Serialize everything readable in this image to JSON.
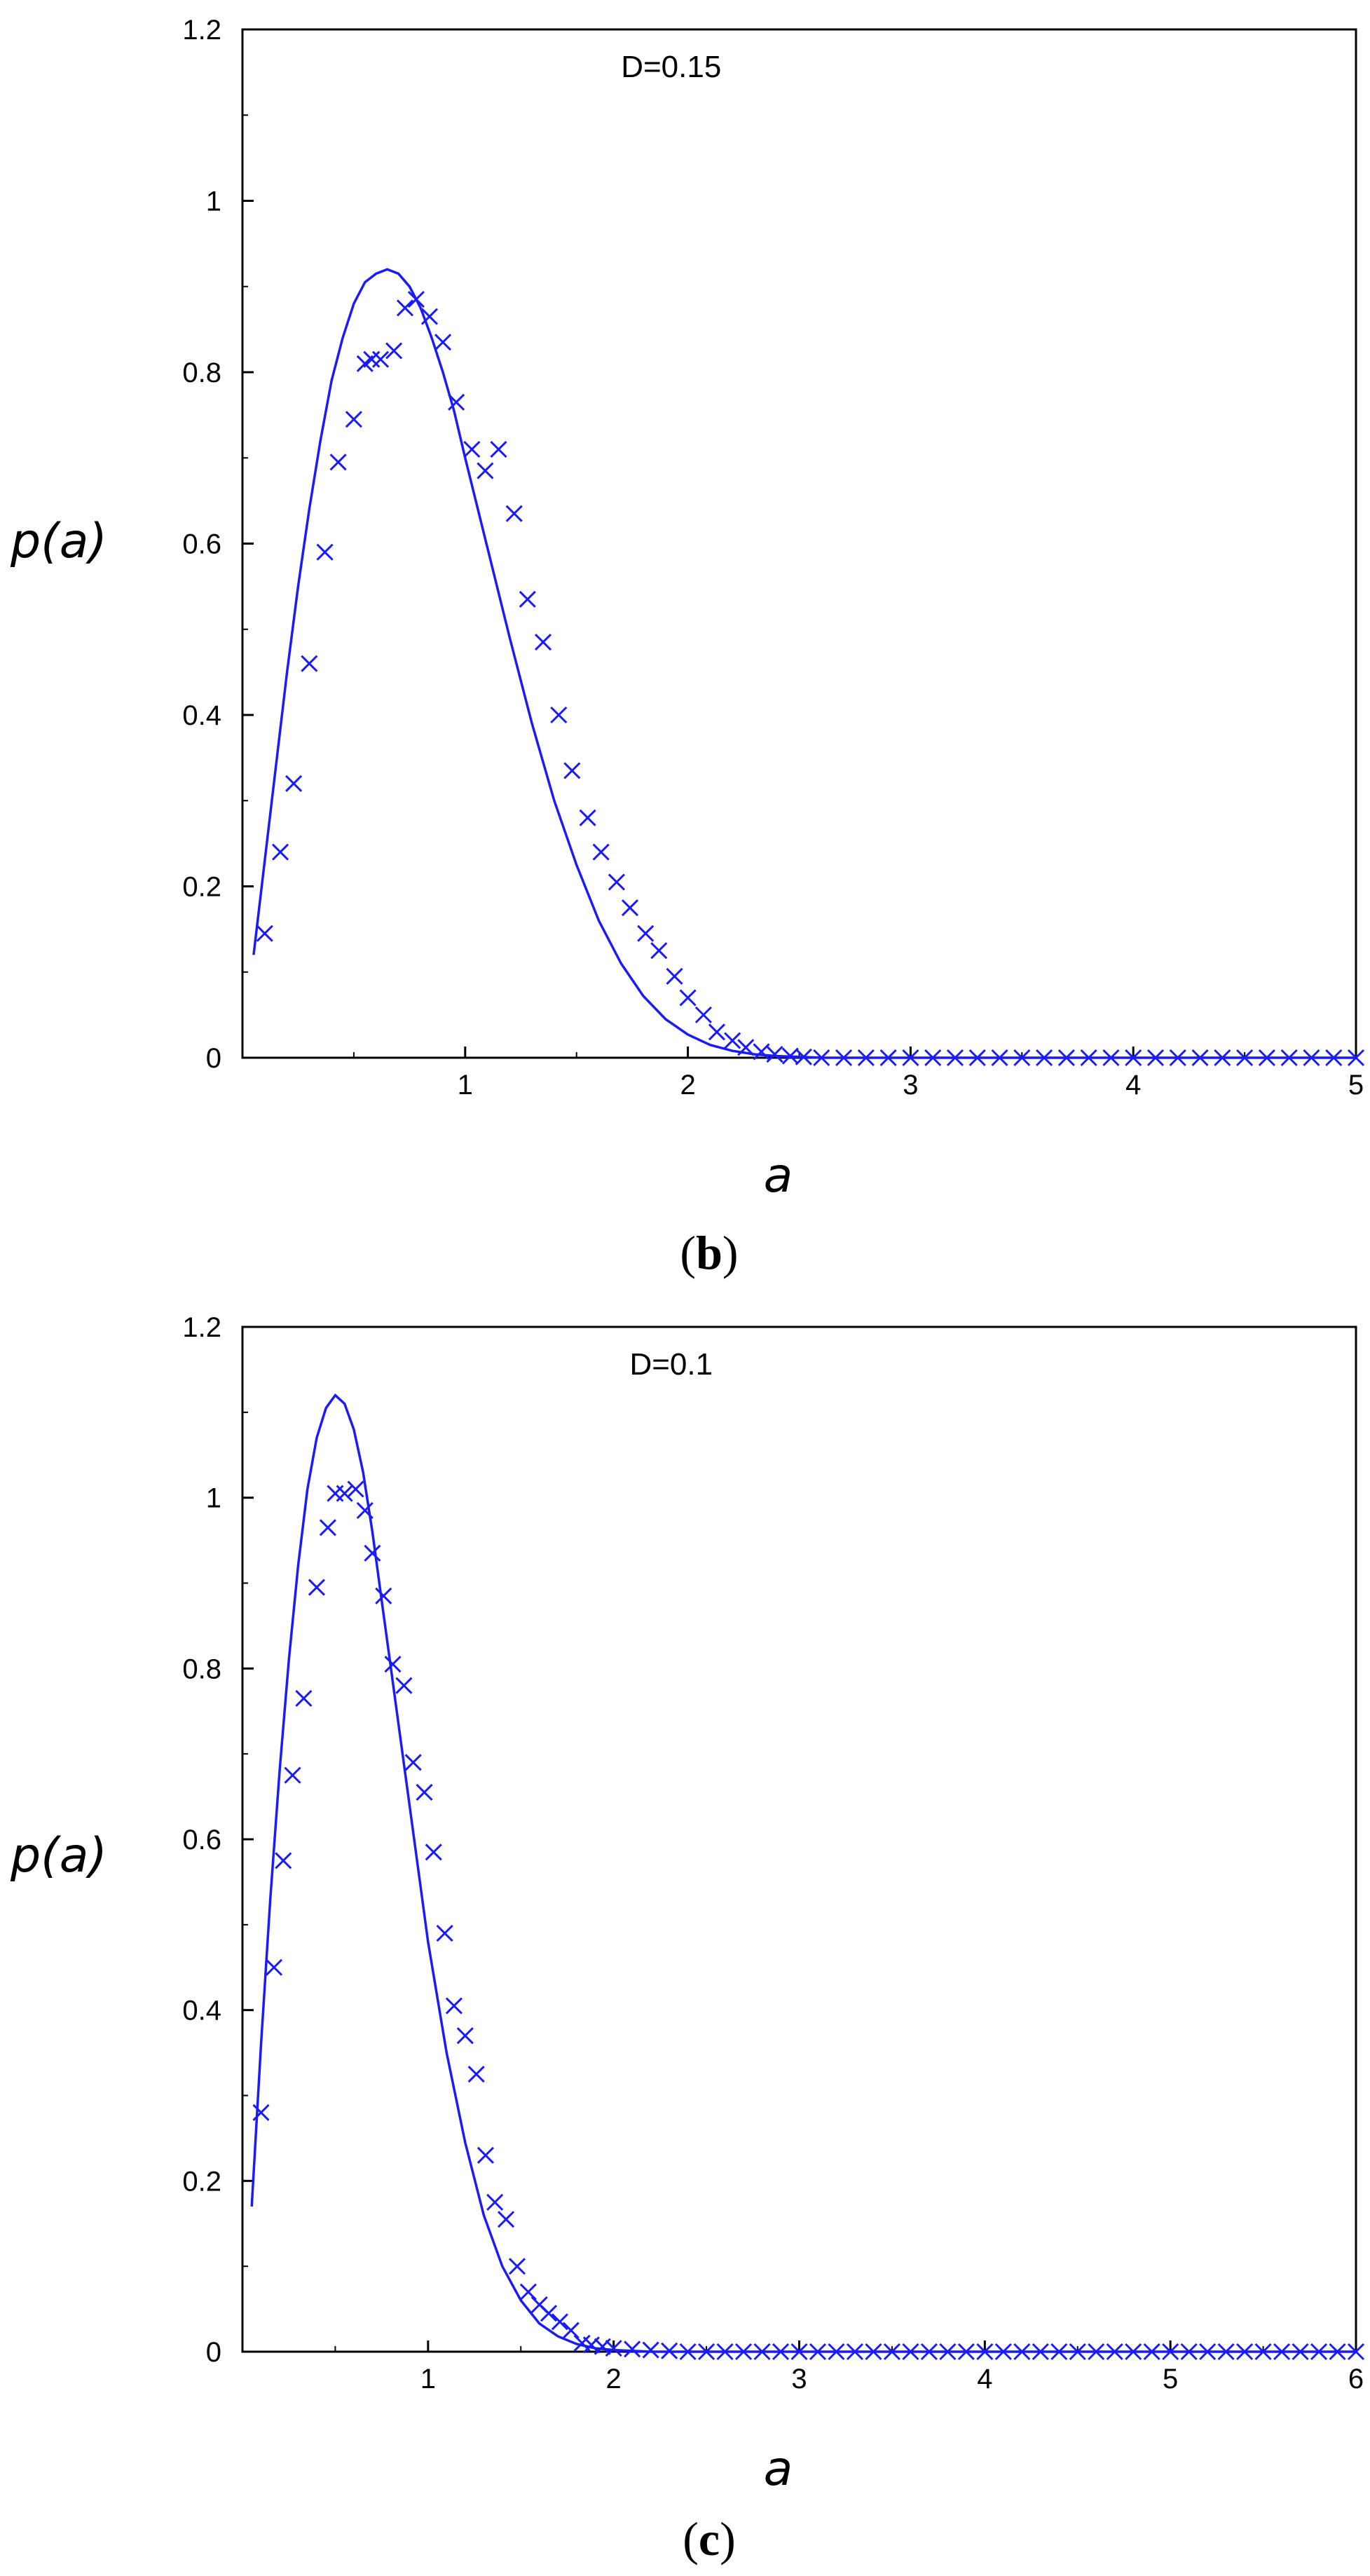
{
  "chart_data": [
    {
      "type": "scatter",
      "panel_label": "b",
      "annotation": "D=0.15",
      "xlabel": "a",
      "ylabel": "p(a)",
      "xlim": [
        0,
        5
      ],
      "ylim": [
        0,
        1.2
      ],
      "xticks": [
        1,
        2,
        3,
        4,
        5
      ],
      "yticks": [
        0,
        0.2,
        0.4,
        0.6,
        0.8,
        1,
        1.2
      ],
      "grid": false,
      "series": [
        {
          "kind": "line",
          "color": "#1a1aff",
          "x": [
            0.05,
            0.1,
            0.15,
            0.2,
            0.25,
            0.3,
            0.35,
            0.4,
            0.45,
            0.5,
            0.55,
            0.6,
            0.65,
            0.7,
            0.75,
            0.8,
            0.85,
            0.9,
            0.95,
            1.0,
            1.1,
            1.2,
            1.3,
            1.4,
            1.5,
            1.6,
            1.7,
            1.8,
            1.9,
            2.0,
            2.1,
            2.2,
            2.3,
            2.4,
            2.5,
            2.6,
            2.8,
            3.0,
            3.5,
            4.0,
            4.5,
            5.0
          ],
          "y": [
            0.12,
            0.23,
            0.34,
            0.45,
            0.55,
            0.64,
            0.72,
            0.79,
            0.84,
            0.88,
            0.905,
            0.915,
            0.92,
            0.915,
            0.9,
            0.875,
            0.84,
            0.8,
            0.755,
            0.7,
            0.595,
            0.49,
            0.39,
            0.3,
            0.225,
            0.16,
            0.11,
            0.072,
            0.045,
            0.027,
            0.015,
            0.008,
            0.004,
            0.002,
            0.001,
            0,
            0,
            0,
            0,
            0,
            0,
            0
          ]
        },
        {
          "kind": "marker",
          "marker": "x",
          "color": "#1a1aff",
          "x": [
            0.1,
            0.17,
            0.23,
            0.3,
            0.37,
            0.43,
            0.5,
            0.55,
            0.58,
            0.62,
            0.68,
            0.73,
            0.78,
            0.84,
            0.9,
            0.96,
            1.03,
            1.09,
            1.15,
            1.22,
            1.28,
            1.35,
            1.42,
            1.48,
            1.55,
            1.61,
            1.68,
            1.74,
            1.81,
            1.87,
            1.94,
            2.0,
            2.07,
            2.13,
            2.2,
            2.26,
            2.33,
            2.39,
            2.46,
            2.52,
            2.6,
            2.7,
            2.8,
            2.9,
            3.0,
            3.1,
            3.2,
            3.3,
            3.4,
            3.5,
            3.6,
            3.7,
            3.8,
            3.9,
            4.0,
            4.1,
            4.2,
            4.3,
            4.4,
            4.5,
            4.6,
            4.7,
            4.8,
            4.9,
            5.0
          ],
          "y": [
            0.145,
            0.24,
            0.32,
            0.46,
            0.59,
            0.695,
            0.745,
            0.81,
            0.815,
            0.815,
            0.825,
            0.875,
            0.885,
            0.865,
            0.835,
            0.765,
            0.71,
            0.685,
            0.71,
            0.635,
            0.535,
            0.485,
            0.4,
            0.335,
            0.28,
            0.24,
            0.205,
            0.175,
            0.145,
            0.125,
            0.095,
            0.07,
            0.05,
            0.03,
            0.02,
            0.012,
            0.007,
            0.004,
            0.002,
            0.001,
            0,
            0,
            0,
            0,
            0,
            0,
            0,
            0,
            0,
            0,
            0,
            0,
            0,
            0,
            0,
            0,
            0,
            0,
            0,
            0,
            0,
            0,
            0,
            0,
            0
          ]
        }
      ]
    },
    {
      "type": "scatter",
      "panel_label": "c",
      "annotation": "D=0.1",
      "xlabel": "a",
      "ylabel": "p(a)",
      "xlim": [
        0,
        6
      ],
      "ylim": [
        0,
        1.2
      ],
      "xticks": [
        1,
        2,
        3,
        4,
        5,
        6
      ],
      "yticks": [
        0,
        0.2,
        0.4,
        0.6,
        0.8,
        1,
        1.2
      ],
      "grid": false,
      "series": [
        {
          "kind": "line",
          "color": "#1a1aff",
          "x": [
            0.05,
            0.1,
            0.15,
            0.2,
            0.25,
            0.3,
            0.35,
            0.4,
            0.45,
            0.5,
            0.55,
            0.6,
            0.65,
            0.7,
            0.75,
            0.8,
            0.85,
            0.9,
            0.95,
            1.0,
            1.1,
            1.2,
            1.3,
            1.4,
            1.5,
            1.6,
            1.7,
            1.8,
            1.9,
            2.0,
            2.1,
            2.2,
            2.4,
            2.6,
            3.0,
            4.0,
            5.0,
            6.0
          ],
          "y": [
            0.17,
            0.36,
            0.53,
            0.68,
            0.81,
            0.92,
            1.01,
            1.07,
            1.105,
            1.12,
            1.11,
            1.08,
            1.03,
            0.96,
            0.88,
            0.8,
            0.72,
            0.64,
            0.56,
            0.48,
            0.35,
            0.245,
            0.16,
            0.1,
            0.06,
            0.033,
            0.018,
            0.009,
            0.004,
            0.002,
            0.001,
            0,
            0,
            0,
            0,
            0,
            0,
            0
          ]
        },
        {
          "kind": "marker",
          "marker": "x",
          "color": "#1a1aff",
          "x": [
            0.1,
            0.17,
            0.22,
            0.27,
            0.33,
            0.4,
            0.46,
            0.5,
            0.55,
            0.61,
            0.66,
            0.7,
            0.76,
            0.81,
            0.87,
            0.92,
            0.98,
            1.03,
            1.09,
            1.14,
            1.2,
            1.26,
            1.31,
            1.36,
            1.42,
            1.48,
            1.54,
            1.6,
            1.65,
            1.71,
            1.77,
            1.83,
            1.88,
            1.94,
            2.0,
            2.1,
            2.2,
            2.3,
            2.4,
            2.5,
            2.6,
            2.7,
            2.8,
            2.9,
            3.0,
            3.1,
            3.2,
            3.3,
            3.4,
            3.5,
            3.6,
            3.7,
            3.8,
            3.9,
            4.0,
            4.1,
            4.2,
            4.3,
            4.4,
            4.5,
            4.6,
            4.7,
            4.8,
            4.9,
            5.0,
            5.1,
            5.2,
            5.3,
            5.4,
            5.5,
            5.6,
            5.7,
            5.8,
            5.9,
            6.0
          ],
          "y": [
            0.28,
            0.45,
            0.575,
            0.675,
            0.765,
            0.895,
            0.965,
            1.005,
            1.005,
            1.01,
            0.985,
            0.935,
            0.885,
            0.805,
            0.78,
            0.69,
            0.655,
            0.585,
            0.49,
            0.405,
            0.37,
            0.325,
            0.23,
            0.175,
            0.155,
            0.1,
            0.07,
            0.055,
            0.045,
            0.035,
            0.025,
            0.01,
            0.008,
            0.006,
            0.004,
            0.003,
            0.002,
            0.001,
            0,
            0,
            0,
            0,
            0,
            0,
            0,
            0,
            0,
            0,
            0,
            0,
            0,
            0,
            0,
            0,
            0,
            0,
            0,
            0,
            0,
            0,
            0,
            0,
            0,
            0,
            0,
            0,
            0,
            0,
            0,
            0,
            0,
            0,
            0,
            0,
            0
          ]
        }
      ]
    }
  ]
}
